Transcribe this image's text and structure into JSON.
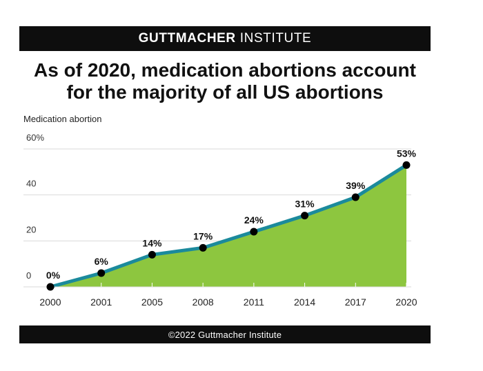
{
  "header": {
    "brand_bold": "GUTTMACHER",
    "brand_light": "INSTITUTE"
  },
  "headline": {
    "line1": "As of 2020, medication abortions account",
    "line2": "for the majority of all US abortions"
  },
  "chart_data": {
    "type": "area",
    "title": "As of 2020, medication abortions account for the majority of all US abortions",
    "ylabel": "Medication abortion",
    "xlabel": "",
    "categories": [
      "2000",
      "2001",
      "2005",
      "2008",
      "2011",
      "2014",
      "2017",
      "2020"
    ],
    "series": [
      {
        "name": "Medication abortion",
        "values": [
          0,
          6,
          14,
          17,
          24,
          31,
          39,
          53
        ],
        "data_labels": [
          "0%",
          "6%",
          "14%",
          "17%",
          "24%",
          "31%",
          "39%",
          "53%"
        ]
      }
    ],
    "y_ticks": [
      0,
      20,
      40,
      60
    ],
    "y_tick_labels": [
      "0",
      "20",
      "40",
      "60%"
    ],
    "ylim": [
      0,
      60
    ],
    "grid": true,
    "colors": {
      "area_fill": "#8dc63f",
      "line": "#1b8a9c",
      "marker": "#000000",
      "grid": "#d9d9d9"
    }
  },
  "footer": {
    "copyright": "©2022 Guttmacher Institute"
  }
}
